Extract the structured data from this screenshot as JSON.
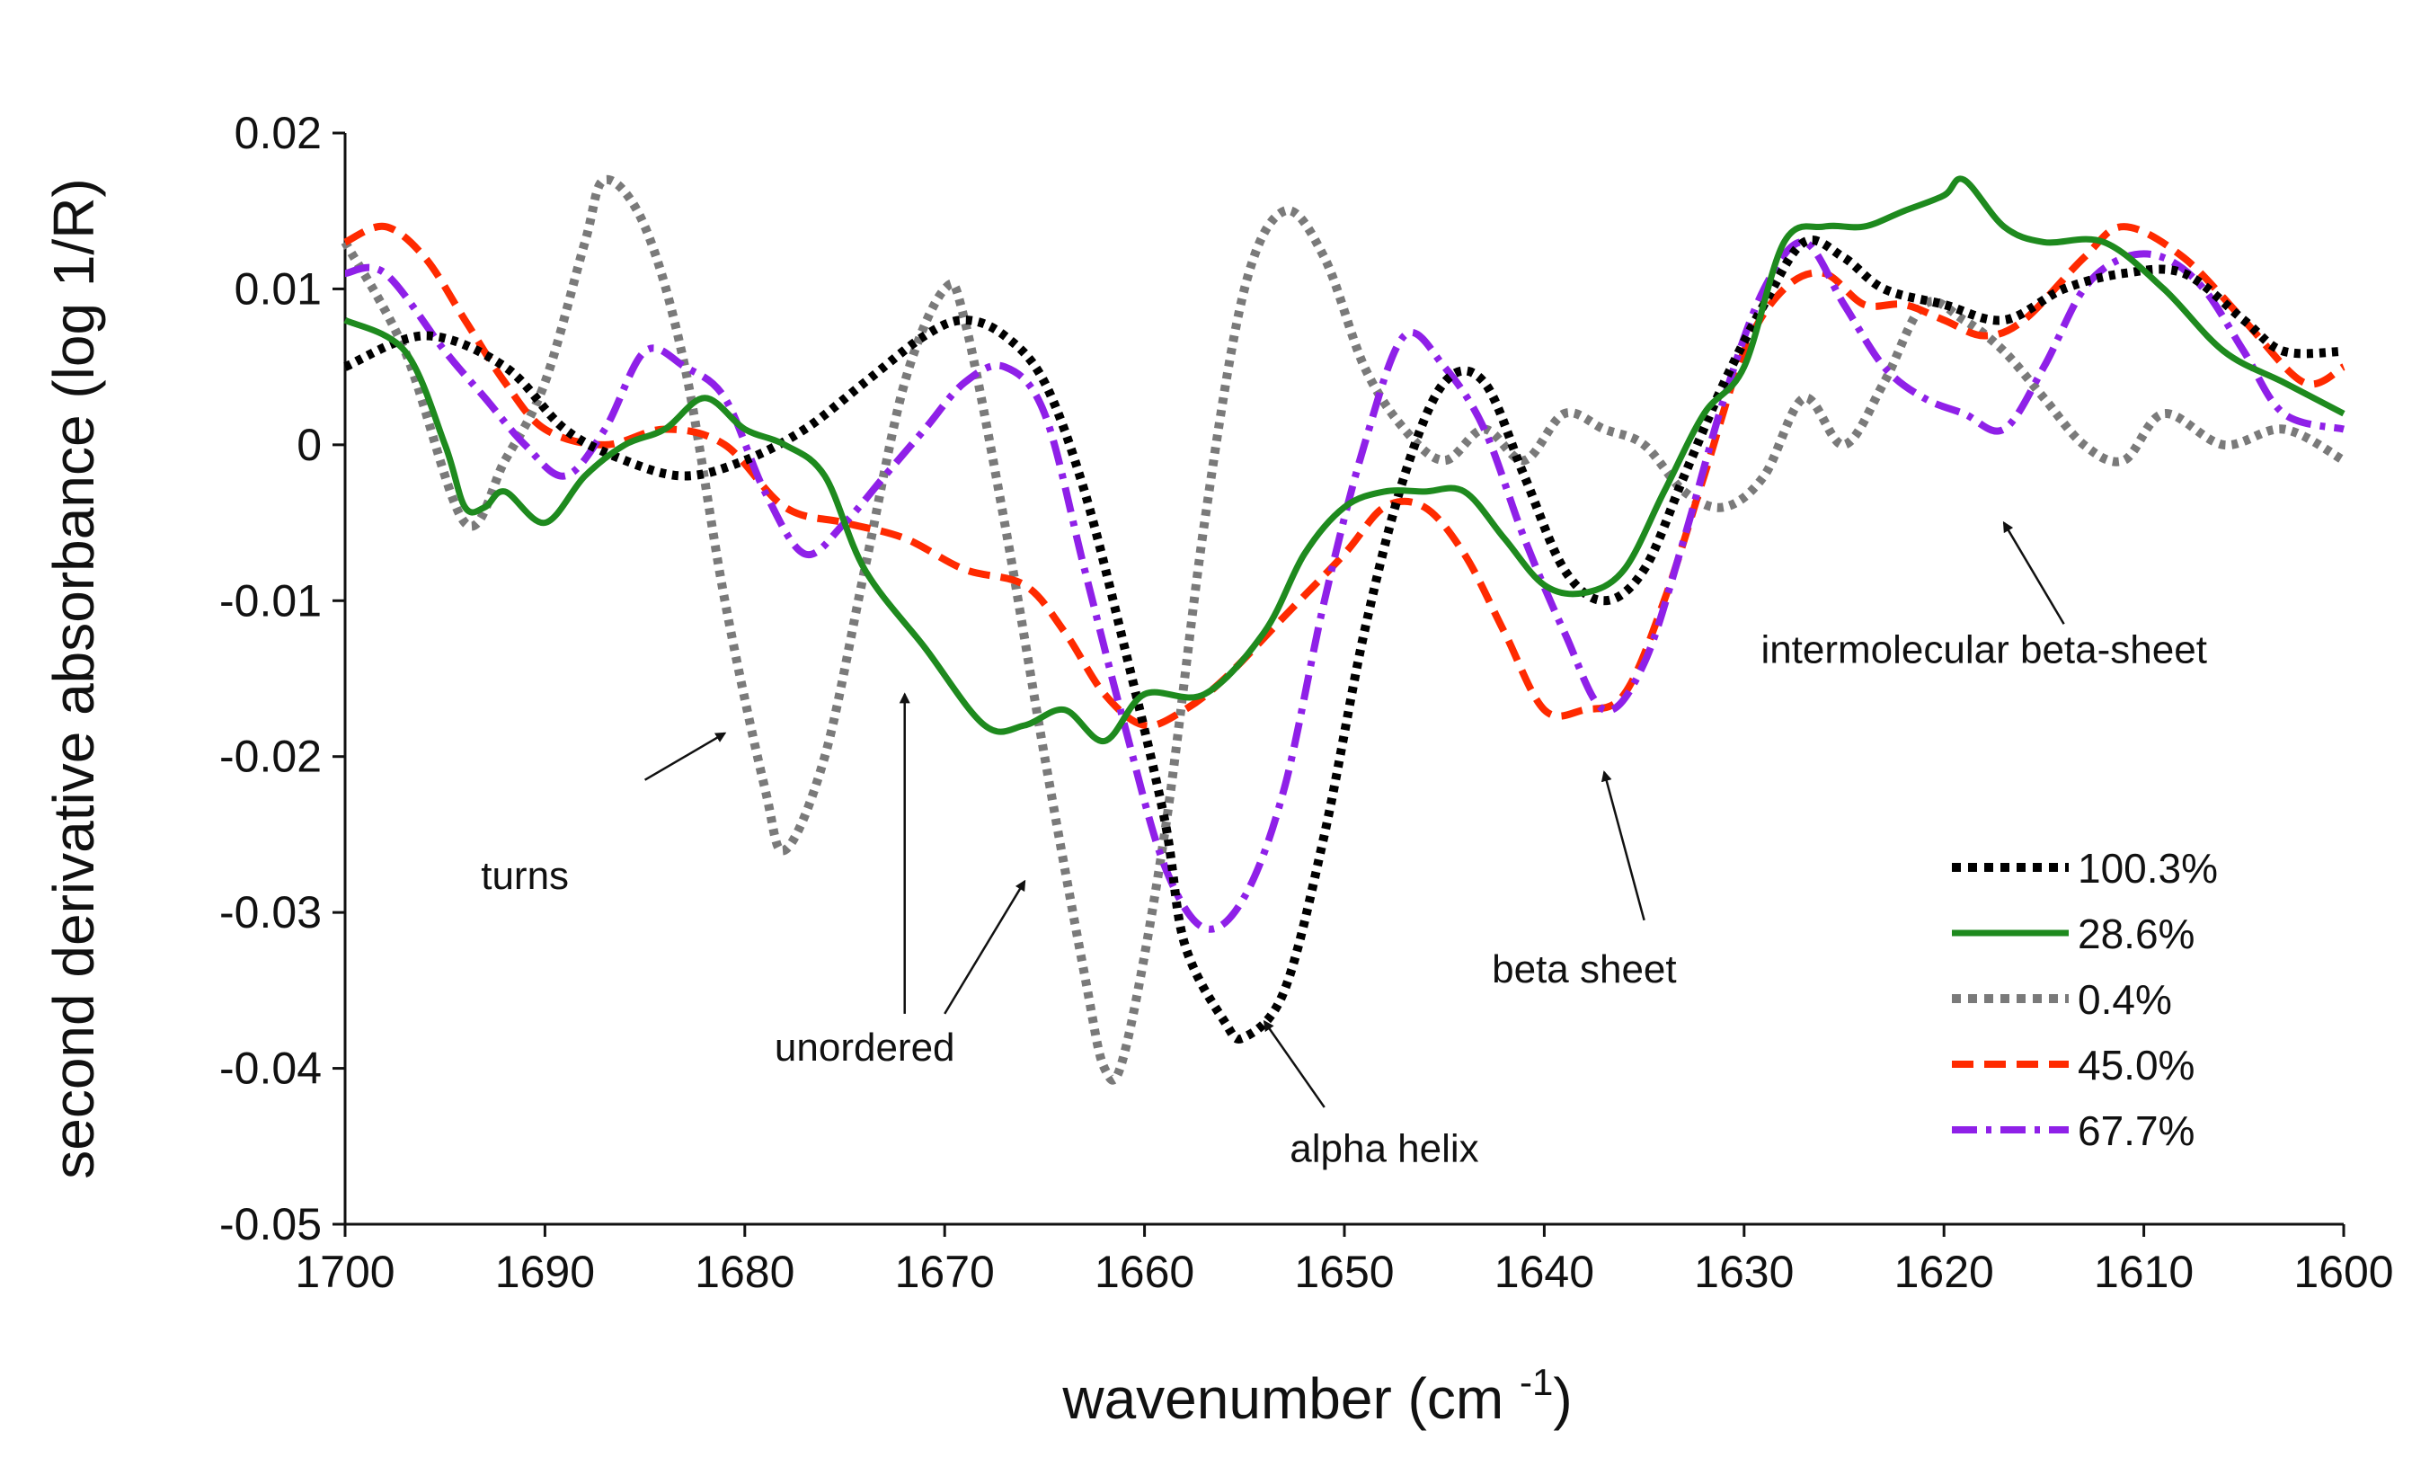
{
  "chart_data": {
    "type": "line",
    "title": "",
    "xlabel": "wavenumber (cm",
    "xlabel_sup": "-1",
    "xlabel_close": ")",
    "ylabel": "second derivative absorbance (log 1/R)",
    "xlim": [
      1700,
      1600
    ],
    "ylim": [
      -0.05,
      0.02
    ],
    "x_ticks": [
      1700,
      1690,
      1680,
      1670,
      1660,
      1650,
      1640,
      1630,
      1620,
      1610,
      1600
    ],
    "y_ticks": [
      -0.05,
      -0.04,
      -0.03,
      -0.02,
      -0.01,
      0,
      0.01,
      0.02
    ],
    "y_tick_labels": [
      "-0.05",
      "-0.04",
      "-0.03",
      "-0.02",
      "-0.01",
      "0",
      "0.01",
      "0.02"
    ],
    "legend_position": "bottom-right",
    "series": [
      {
        "name": "100.3%",
        "color": "#000000",
        "style": "dotted",
        "points": [
          [
            1700,
            0.005
          ],
          [
            1696,
            0.007
          ],
          [
            1692,
            0.005
          ],
          [
            1689,
            0.001
          ],
          [
            1686,
            -0.001
          ],
          [
            1683,
            -0.002
          ],
          [
            1680,
            -0.001
          ],
          [
            1677,
            0.001
          ],
          [
            1674,
            0.004
          ],
          [
            1671,
            0.007
          ],
          [
            1669,
            0.008
          ],
          [
            1667,
            0.007
          ],
          [
            1665,
            0.004
          ],
          [
            1663,
            -0.003
          ],
          [
            1661,
            -0.013
          ],
          [
            1659,
            -0.024
          ],
          [
            1658,
            -0.032
          ],
          [
            1656,
            -0.037
          ],
          [
            1655,
            -0.038
          ],
          [
            1653,
            -0.035
          ],
          [
            1651,
            -0.025
          ],
          [
            1649,
            -0.012
          ],
          [
            1647,
            -0.002
          ],
          [
            1645,
            0.004
          ],
          [
            1643,
            0.004
          ],
          [
            1641,
            -0.002
          ],
          [
            1639,
            -0.008
          ],
          [
            1637,
            -0.01
          ],
          [
            1635,
            -0.008
          ],
          [
            1633,
            -0.002
          ],
          [
            1631,
            0.004
          ],
          [
            1629,
            0.009
          ],
          [
            1627,
            0.013
          ],
          [
            1625,
            0.012
          ],
          [
            1623,
            0.01
          ],
          [
            1620,
            0.009
          ],
          [
            1617,
            0.008
          ],
          [
            1614,
            0.01
          ],
          [
            1611,
            0.011
          ],
          [
            1608,
            0.011
          ],
          [
            1605,
            0.008
          ],
          [
            1603,
            0.006
          ],
          [
            1600,
            0.006
          ]
        ]
      },
      {
        "name": "28.6%",
        "color": "#1e8a1e",
        "style": "solid",
        "points": [
          [
            1700,
            0.008
          ],
          [
            1697,
            0.006
          ],
          [
            1695,
            0.0
          ],
          [
            1694,
            -0.004
          ],
          [
            1693,
            -0.004
          ],
          [
            1692,
            -0.003
          ],
          [
            1690,
            -0.005
          ],
          [
            1688,
            -0.002
          ],
          [
            1686,
            0.0
          ],
          [
            1684,
            0.001
          ],
          [
            1682,
            0.003
          ],
          [
            1680,
            0.001
          ],
          [
            1678,
            0.0
          ],
          [
            1676,
            -0.002
          ],
          [
            1674,
            -0.008
          ],
          [
            1671,
            -0.013
          ],
          [
            1668,
            -0.018
          ],
          [
            1666,
            -0.018
          ],
          [
            1664,
            -0.017
          ],
          [
            1662,
            -0.019
          ],
          [
            1660,
            -0.016
          ],
          [
            1657,
            -0.016
          ],
          [
            1654,
            -0.012
          ],
          [
            1652,
            -0.007
          ],
          [
            1650,
            -0.004
          ],
          [
            1648,
            -0.003
          ],
          [
            1646,
            -0.003
          ],
          [
            1644,
            -0.003
          ],
          [
            1642,
            -0.006
          ],
          [
            1640,
            -0.009
          ],
          [
            1638,
            -0.0095
          ],
          [
            1636,
            -0.008
          ],
          [
            1634,
            -0.003
          ],
          [
            1632,
            0.002
          ],
          [
            1630,
            0.005
          ],
          [
            1628,
            0.013
          ],
          [
            1626,
            0.014
          ],
          [
            1624,
            0.014
          ],
          [
            1622,
            0.015
          ],
          [
            1620,
            0.016
          ],
          [
            1619,
            0.017
          ],
          [
            1617,
            0.014
          ],
          [
            1615,
            0.013
          ],
          [
            1612,
            0.013
          ],
          [
            1609,
            0.01
          ],
          [
            1606,
            0.006
          ],
          [
            1603,
            0.004
          ],
          [
            1600,
            0.002
          ]
        ]
      },
      {
        "name": "0.4%",
        "color": "#7a7a7a",
        "style": "dotted",
        "points": [
          [
            1700,
            0.013
          ],
          [
            1697,
            0.006
          ],
          [
            1694,
            -0.005
          ],
          [
            1692,
            -0.001
          ],
          [
            1690,
            0.004
          ],
          [
            1688,
            0.013
          ],
          [
            1687,
            0.017
          ],
          [
            1685,
            0.014
          ],
          [
            1683,
            0.005
          ],
          [
            1681,
            -0.01
          ],
          [
            1679,
            -0.022
          ],
          [
            1678,
            -0.026
          ],
          [
            1676,
            -0.02
          ],
          [
            1674,
            -0.008
          ],
          [
            1672,
            0.004
          ],
          [
            1670,
            0.01
          ],
          [
            1669,
            0.008
          ],
          [
            1667,
            -0.005
          ],
          [
            1665,
            -0.02
          ],
          [
            1663,
            -0.034
          ],
          [
            1662,
            -0.04
          ],
          [
            1661,
            -0.039
          ],
          [
            1659,
            -0.025
          ],
          [
            1657,
            -0.005
          ],
          [
            1655,
            0.01
          ],
          [
            1653,
            0.015
          ],
          [
            1651,
            0.012
          ],
          [
            1649,
            0.005
          ],
          [
            1647,
            0.001
          ],
          [
            1645,
            -0.001
          ],
          [
            1643,
            0.001
          ],
          [
            1641,
            -0.001
          ],
          [
            1639,
            0.002
          ],
          [
            1637,
            0.001
          ],
          [
            1635,
            0.0
          ],
          [
            1633,
            -0.003
          ],
          [
            1631,
            -0.004
          ],
          [
            1629,
            -0.002
          ],
          [
            1627,
            0.003
          ],
          [
            1625,
            0.0
          ],
          [
            1623,
            0.004
          ],
          [
            1621,
            0.009
          ],
          [
            1619,
            0.008
          ],
          [
            1617,
            0.006
          ],
          [
            1615,
            0.003
          ],
          [
            1613,
            0.0
          ],
          [
            1611,
            -0.001
          ],
          [
            1609,
            0.002
          ],
          [
            1606,
            0.0
          ],
          [
            1603,
            0.001
          ],
          [
            1600,
            -0.001
          ]
        ]
      },
      {
        "name": "45.0%",
        "color": "#ff2a00",
        "style": "dashed",
        "points": [
          [
            1700,
            0.013
          ],
          [
            1698,
            0.014
          ],
          [
            1696,
            0.012
          ],
          [
            1694,
            0.008
          ],
          [
            1692,
            0.004
          ],
          [
            1690,
            0.001
          ],
          [
            1687,
            0.0
          ],
          [
            1684,
            0.001
          ],
          [
            1681,
            0.0
          ],
          [
            1678,
            -0.004
          ],
          [
            1675,
            -0.005
          ],
          [
            1672,
            -0.006
          ],
          [
            1669,
            -0.008
          ],
          [
            1666,
            -0.009
          ],
          [
            1664,
            -0.012
          ],
          [
            1662,
            -0.016
          ],
          [
            1660,
            -0.018
          ],
          [
            1658,
            -0.017
          ],
          [
            1656,
            -0.015
          ],
          [
            1653,
            -0.011
          ],
          [
            1650,
            -0.007
          ],
          [
            1648,
            -0.004
          ],
          [
            1646,
            -0.004
          ],
          [
            1644,
            -0.007
          ],
          [
            1642,
            -0.012
          ],
          [
            1640,
            -0.017
          ],
          [
            1638,
            -0.017
          ],
          [
            1636,
            -0.016
          ],
          [
            1634,
            -0.01
          ],
          [
            1632,
            -0.002
          ],
          [
            1630,
            0.006
          ],
          [
            1628,
            0.01
          ],
          [
            1626,
            0.011
          ],
          [
            1624,
            0.009
          ],
          [
            1622,
            0.009
          ],
          [
            1620,
            0.008
          ],
          [
            1618,
            0.007
          ],
          [
            1616,
            0.008
          ],
          [
            1613,
            0.012
          ],
          [
            1611,
            0.014
          ],
          [
            1608,
            0.012
          ],
          [
            1605,
            0.008
          ],
          [
            1602,
            0.004
          ],
          [
            1600,
            0.005
          ]
        ]
      },
      {
        "name": "67.7%",
        "color": "#8f20e8",
        "style": "dashdot",
        "points": [
          [
            1700,
            0.011
          ],
          [
            1698,
            0.011
          ],
          [
            1695,
            0.006
          ],
          [
            1693,
            0.003
          ],
          [
            1691,
            0.0
          ],
          [
            1689,
            -0.002
          ],
          [
            1687,
            0.001
          ],
          [
            1685,
            0.006
          ],
          [
            1683,
            0.005
          ],
          [
            1681,
            0.003
          ],
          [
            1679,
            -0.003
          ],
          [
            1677,
            -0.007
          ],
          [
            1675,
            -0.005
          ],
          [
            1673,
            -0.002
          ],
          [
            1671,
            0.001
          ],
          [
            1669,
            0.004
          ],
          [
            1667,
            0.005
          ],
          [
            1665,
            0.002
          ],
          [
            1663,
            -0.008
          ],
          [
            1661,
            -0.018
          ],
          [
            1659,
            -0.027
          ],
          [
            1657,
            -0.031
          ],
          [
            1655,
            -0.029
          ],
          [
            1653,
            -0.022
          ],
          [
            1651,
            -0.01
          ],
          [
            1649,
            0.0
          ],
          [
            1647,
            0.007
          ],
          [
            1645,
            0.005
          ],
          [
            1643,
            0.001
          ],
          [
            1641,
            -0.006
          ],
          [
            1639,
            -0.012
          ],
          [
            1637,
            -0.017
          ],
          [
            1635,
            -0.014
          ],
          [
            1633,
            -0.006
          ],
          [
            1631,
            0.003
          ],
          [
            1629,
            0.01
          ],
          [
            1627,
            0.013
          ],
          [
            1625,
            0.009
          ],
          [
            1623,
            0.005
          ],
          [
            1621,
            0.003
          ],
          [
            1619,
            0.002
          ],
          [
            1617,
            0.001
          ],
          [
            1615,
            0.005
          ],
          [
            1613,
            0.01
          ],
          [
            1611,
            0.012
          ],
          [
            1609,
            0.012
          ],
          [
            1607,
            0.01
          ],
          [
            1605,
            0.006
          ],
          [
            1603,
            0.002
          ],
          [
            1600,
            0.001
          ]
        ]
      }
    ],
    "annotations": [
      {
        "text": "turns",
        "label_at": [
          1691,
          -0.0285
        ],
        "arrow_from": [
          1685,
          -0.0215
        ],
        "arrow_to": [
          1681,
          -0.0185
        ]
      },
      {
        "text": "unordered",
        "label_at": [
          1674,
          -0.0395
        ],
        "arrow_from": [
          1672,
          -0.0365
        ],
        "arrow_to": [
          1672,
          -0.016
        ]
      },
      {
        "text": "",
        "label_at": null,
        "arrow_from": [
          1670,
          -0.0365
        ],
        "arrow_to": [
          1666,
          -0.028
        ]
      },
      {
        "text": "alpha helix",
        "label_at": [
          1648,
          -0.046
        ],
        "arrow_from": [
          1651,
          -0.0425
        ],
        "arrow_to": [
          1654,
          -0.037
        ]
      },
      {
        "text": "beta sheet",
        "label_at": [
          1638,
          -0.0345
        ],
        "arrow_from": [
          1635,
          -0.0305
        ],
        "arrow_to": [
          1637,
          -0.021
        ]
      },
      {
        "text": "intermolecular beta-sheet",
        "label_at": [
          1618,
          -0.014
        ],
        "arrow_from": [
          1614,
          -0.0115
        ],
        "arrow_to": [
          1617,
          -0.005
        ]
      }
    ]
  }
}
